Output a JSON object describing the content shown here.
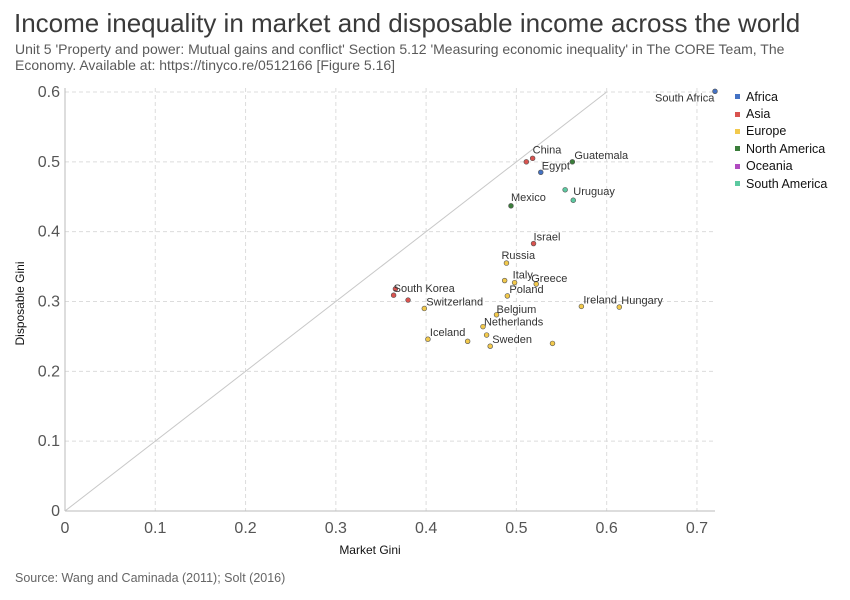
{
  "header": {
    "title": "Income inequality in market and disposable income across the world",
    "subtitle": "Unit 5 'Property and power: Mutual gains and conflict' Section 5.12 'Measuring economic inequality' in The CORE Team, The Economy. Available at: https://tinyco.re/0512166 [Figure 5.16]"
  },
  "footer": {
    "source": "Source: Wang and Caminada (2011); Solt (2016)"
  },
  "legend": {
    "items": [
      {
        "label": "Africa",
        "color": "#4472c4"
      },
      {
        "label": "Asia",
        "color": "#d9534f"
      },
      {
        "label": "Europe",
        "color": "#f2c94c"
      },
      {
        "label": "North America",
        "color": "#3a7d3a"
      },
      {
        "label": "Oceania",
        "color": "#b04bc0"
      },
      {
        "label": "South America",
        "color": "#5cc9a0"
      }
    ]
  },
  "chart_data": {
    "type": "scatter",
    "title": "Income inequality in market and disposable income across the world",
    "xlabel": "Market Gini",
    "ylabel": "Disposable Gini",
    "xlim": [
      0,
      0.72
    ],
    "ylim": [
      0,
      0.6
    ],
    "xticks": [
      "0",
      "0.1",
      "0.2",
      "0.3",
      "0.4",
      "0.5",
      "0.6",
      "0.7"
    ],
    "yticks": [
      "0",
      "0.1",
      "0.2",
      "0.3",
      "0.4",
      "0.5",
      "0.6"
    ],
    "grid": true,
    "reference_line": "45-degree line (market Gini = disposable Gini)",
    "series_colors": {
      "Africa": "#4472c4",
      "Asia": "#d9534f",
      "Europe": "#f2c94c",
      "North America": "#3a7d3a",
      "Oceania": "#b04bc0",
      "South America": "#5cc9a0"
    },
    "points": [
      {
        "label": "South Africa",
        "x": 0.72,
        "y": 0.601,
        "region": "Africa"
      },
      {
        "label": "China",
        "x": 0.518,
        "y": 0.505,
        "region": "Asia"
      },
      {
        "label": "",
        "x": 0.511,
        "y": 0.5,
        "region": "Asia"
      },
      {
        "label": "Guatemala",
        "x": 0.562,
        "y": 0.5,
        "region": "North America"
      },
      {
        "label": "Egypt",
        "x": 0.527,
        "y": 0.485,
        "region": "Africa"
      },
      {
        "label": "",
        "x": 0.554,
        "y": 0.46,
        "region": "South America"
      },
      {
        "label": "Uruguay",
        "x": 0.563,
        "y": 0.445,
        "region": "South America"
      },
      {
        "label": "Mexico",
        "x": 0.494,
        "y": 0.437,
        "region": "North America"
      },
      {
        "label": "Israel",
        "x": 0.519,
        "y": 0.383,
        "region": "Asia"
      },
      {
        "label": "Russia",
        "x": 0.489,
        "y": 0.355,
        "region": "Europe"
      },
      {
        "label": "Italy",
        "x": 0.487,
        "y": 0.33,
        "region": "Europe"
      },
      {
        "label": "Greece",
        "x": 0.522,
        "y": 0.325,
        "region": "Europe"
      },
      {
        "label": "",
        "x": 0.498,
        "y": 0.327,
        "region": "Europe"
      },
      {
        "label": "Poland",
        "x": 0.49,
        "y": 0.308,
        "region": "Europe"
      },
      {
        "label": "South Korea",
        "x": 0.364,
        "y": 0.309,
        "region": "Asia"
      },
      {
        "label": "",
        "x": 0.366,
        "y": 0.318,
        "region": "Asia"
      },
      {
        "label": "",
        "x": 0.38,
        "y": 0.302,
        "region": "Asia"
      },
      {
        "label": "Switzerland",
        "x": 0.398,
        "y": 0.29,
        "region": "Europe"
      },
      {
        "label": "Ireland",
        "x": 0.572,
        "y": 0.293,
        "region": "Europe"
      },
      {
        "label": "Hungary",
        "x": 0.614,
        "y": 0.292,
        "region": "Europe"
      },
      {
        "label": "Belgium",
        "x": 0.478,
        "y": 0.281,
        "region": "Europe"
      },
      {
        "label": "Netherlands",
        "x": 0.463,
        "y": 0.264,
        "region": "Europe"
      },
      {
        "label": "",
        "x": 0.467,
        "y": 0.252,
        "region": "Europe"
      },
      {
        "label": "Iceland",
        "x": 0.402,
        "y": 0.246,
        "region": "Europe"
      },
      {
        "label": "",
        "x": 0.446,
        "y": 0.243,
        "region": "Europe"
      },
      {
        "label": "Sweden",
        "x": 0.471,
        "y": 0.236,
        "region": "Europe"
      },
      {
        "label": "",
        "x": 0.54,
        "y": 0.24,
        "region": "Europe"
      }
    ]
  }
}
